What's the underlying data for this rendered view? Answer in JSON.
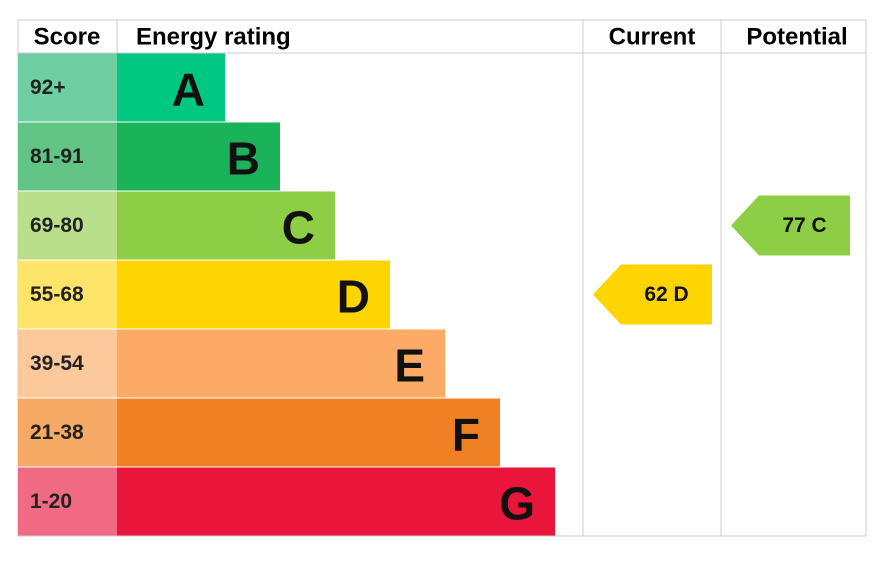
{
  "header": {
    "score": "Score",
    "energy_rating": "Energy rating",
    "current": "Current",
    "potential": "Potential"
  },
  "bands": [
    {
      "score": "92+",
      "letter": "A",
      "color": "#00c781",
      "score_color": "#6fcfa3"
    },
    {
      "score": "81-91",
      "letter": "B",
      "color": "#1bb35a",
      "score_color": "#62c585"
    },
    {
      "score": "69-80",
      "letter": "C",
      "color": "#8dce46",
      "score_color": "#badf8c"
    },
    {
      "score": "55-68",
      "letter": "D",
      "color": "#ffd500",
      "score_color": "#ffe46a"
    },
    {
      "score": "39-54",
      "letter": "E",
      "color": "#fcaa65",
      "score_color": "#fdc99b"
    },
    {
      "score": "21-38",
      "letter": "F",
      "color": "#ef8023",
      "score_color": "#f4a964"
    },
    {
      "score": "1-20",
      "letter": "G",
      "color": "#e9153b",
      "score_color": "#f06a83"
    }
  ],
  "current": {
    "text": "62 D",
    "color": "#ffd500"
  },
  "potential": {
    "text": "77 C",
    "color": "#8dce46"
  }
}
